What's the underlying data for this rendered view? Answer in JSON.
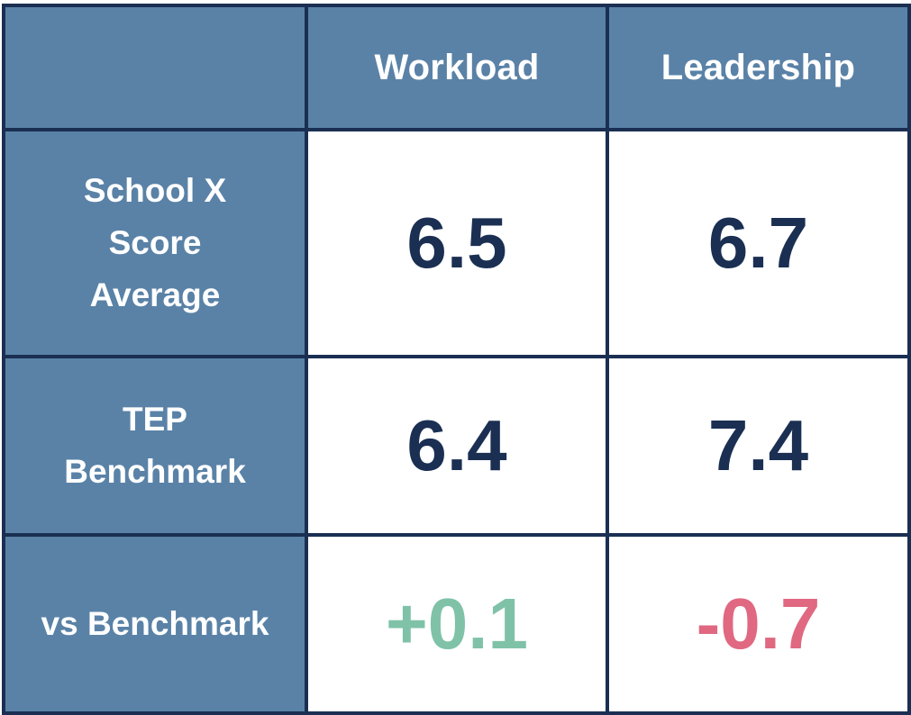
{
  "chart_data": {
    "type": "table",
    "columns": [
      "",
      "Workload",
      "Leadership"
    ],
    "rows": [
      {
        "label_lines": [
          "School X",
          "Score",
          "Average"
        ],
        "values": [
          "6.5",
          "6.7"
        ]
      },
      {
        "label_lines": [
          "TEP",
          "Benchmark"
        ],
        "values": [
          "6.4",
          "7.4"
        ]
      },
      {
        "label_lines": [
          "vs Benchmark"
        ],
        "values": [
          "+0.1",
          "-0.7"
        ]
      }
    ],
    "colors": {
      "header_bg": "#5a82a7",
      "border": "#1a2f52",
      "value_text": "#1a2f52",
      "positive": "#7fc2a8",
      "negative": "#e06881"
    }
  }
}
